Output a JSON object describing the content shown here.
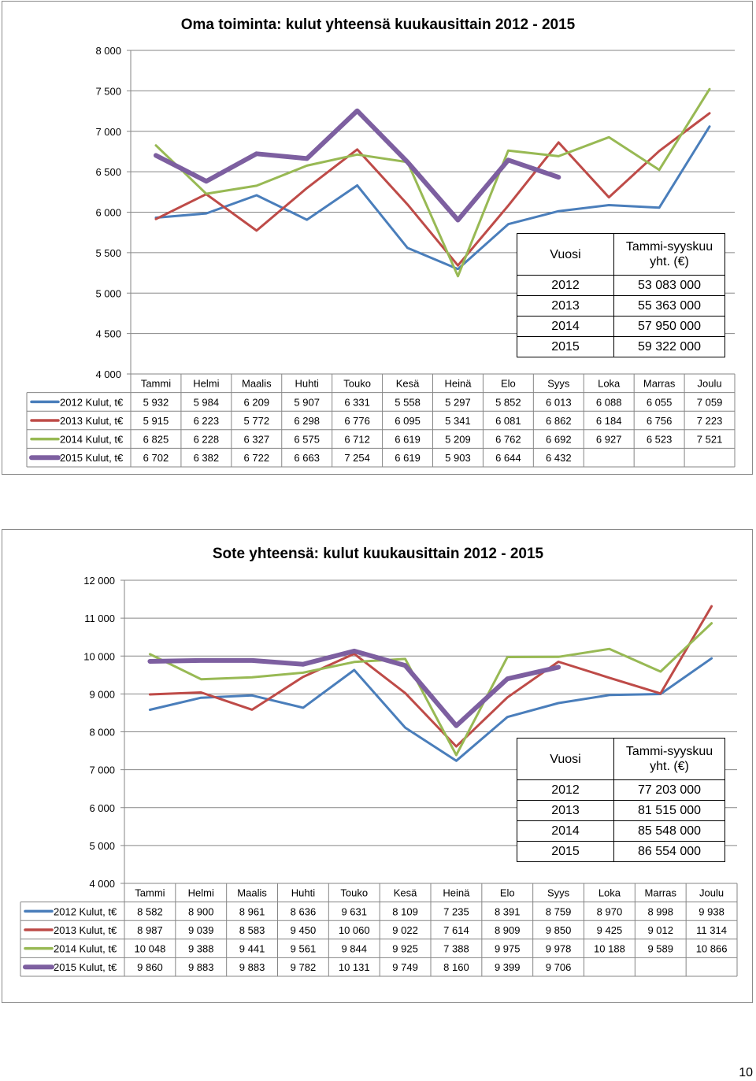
{
  "charts": [
    {
      "title": "Oma toiminta: kulut yhteensä kuukausittain 2012 - 2015",
      "summary": {
        "header_year": "Vuosi",
        "header_value": "Tammi-syyskuu yht. (€)",
        "rows": [
          {
            "year": "2012",
            "value": "53 083 000"
          },
          {
            "year": "2013",
            "value": "55 363 000"
          },
          {
            "year": "2014",
            "value": "57 950 000"
          },
          {
            "year": "2015",
            "value": "59 322 000"
          }
        ]
      }
    },
    {
      "title": "Sote yhteensä: kulut kuukausittain 2012 - 2015",
      "summary": {
        "header_year": "Vuosi",
        "header_value": "Tammi-syyskuu yht. (€)",
        "rows": [
          {
            "year": "2012",
            "value": "77 203 000"
          },
          {
            "year": "2013",
            "value": "81 515 000"
          },
          {
            "year": "2014",
            "value": "85 548 000"
          },
          {
            "year": "2015",
            "value": "86 554 000"
          }
        ]
      }
    }
  ],
  "chart_data": [
    {
      "type": "line",
      "title": "Oma toiminta: kulut yhteensä kuukausittain 2012 - 2015",
      "categories": [
        "Tammi",
        "Helmi",
        "Maalis",
        "Huhti",
        "Touko",
        "Kesä",
        "Heinä",
        "Elo",
        "Syys",
        "Loka",
        "Marras",
        "Joulu"
      ],
      "ylim": [
        4000,
        8000
      ],
      "yticks": [
        4000,
        4500,
        5000,
        5500,
        6000,
        6500,
        7000,
        7500,
        8000
      ],
      "ytick_labels": [
        "4 000",
        "4 500",
        "5 000",
        "5 500",
        "6 000",
        "6 500",
        "7 000",
        "7 500",
        "8 000"
      ],
      "grid": true,
      "legend": "data-table",
      "series": [
        {
          "name": "2012 Kulut, t€",
          "color": "#4a7ebb",
          "values": [
            5932,
            5984,
            6209,
            5907,
            6331,
            5558,
            5297,
            5852,
            6013,
            6088,
            6055,
            7059
          ],
          "labels": [
            "5 932",
            "5 984",
            "6 209",
            "5 907",
            "6 331",
            "5 558",
            "5 297",
            "5 852",
            "6 013",
            "6 088",
            "6 055",
            "7 059"
          ]
        },
        {
          "name": "2013 Kulut, t€",
          "color": "#be4b48",
          "values": [
            5915,
            6223,
            5772,
            6298,
            6776,
            6095,
            5341,
            6081,
            6862,
            6184,
            6756,
            7223
          ],
          "labels": [
            "5 915",
            "6 223",
            "5 772",
            "6 298",
            "6 776",
            "6 095",
            "5 341",
            "6 081",
            "6 862",
            "6 184",
            "6 756",
            "7 223"
          ]
        },
        {
          "name": "2014 Kulut, t€",
          "color": "#98b954",
          "values": [
            6825,
            6228,
            6327,
            6575,
            6712,
            6619,
            5209,
            6762,
            6692,
            6927,
            6523,
            7521
          ],
          "labels": [
            "6 825",
            "6 228",
            "6 327",
            "6 575",
            "6 712",
            "6 619",
            "5 209",
            "6 762",
            "6 692",
            "6 927",
            "6 523",
            "7 521"
          ]
        },
        {
          "name": "2015 Kulut, t€",
          "color": "#7d5fa0",
          "values": [
            6702,
            6382,
            6722,
            6663,
            7254,
            6619,
            5903,
            6644,
            6432,
            null,
            null,
            null
          ],
          "labels": [
            "6 702",
            "6 382",
            "6 722",
            "6 663",
            "7 254",
            "6 619",
            "5 903",
            "6 644",
            "6 432",
            "",
            "",
            ""
          ]
        }
      ]
    },
    {
      "type": "line",
      "title": "Sote yhteensä: kulut kuukausittain 2012 - 2015",
      "categories": [
        "Tammi",
        "Helmi",
        "Maalis",
        "Huhti",
        "Touko",
        "Kesä",
        "Heinä",
        "Elo",
        "Syys",
        "Loka",
        "Marras",
        "Joulu"
      ],
      "ylim": [
        4000,
        12000
      ],
      "yticks": [
        4000,
        5000,
        6000,
        7000,
        8000,
        9000,
        10000,
        11000,
        12000
      ],
      "ytick_labels": [
        "4 000",
        "5 000",
        "6 000",
        "7 000",
        "8 000",
        "9 000",
        "10 000",
        "11 000",
        "12 000"
      ],
      "grid": true,
      "legend": "data-table",
      "series": [
        {
          "name": "2012 Kulut, t€",
          "color": "#4a7ebb",
          "values": [
            8582,
            8900,
            8961,
            8636,
            9631,
            8109,
            7235,
            8391,
            8759,
            8970,
            8998,
            9938
          ],
          "labels": [
            "8 582",
            "8 900",
            "8 961",
            "8 636",
            "9 631",
            "8 109",
            "7 235",
            "8 391",
            "8 759",
            "8 970",
            "8 998",
            "9 938"
          ]
        },
        {
          "name": "2013 Kulut, t€",
          "color": "#be4b48",
          "values": [
            8987,
            9039,
            8583,
            9450,
            10060,
            9022,
            7614,
            8909,
            9850,
            9425,
            9012,
            11314
          ],
          "labels": [
            "8 987",
            "9 039",
            "8 583",
            "9 450",
            "10 060",
            "9 022",
            "7 614",
            "8 909",
            "9 850",
            "9 425",
            "9 012",
            "11 314"
          ]
        },
        {
          "name": "2014 Kulut, t€",
          "color": "#98b954",
          "values": [
            10048,
            9388,
            9441,
            9561,
            9844,
            9925,
            7388,
            9975,
            9978,
            10188,
            9589,
            10866
          ],
          "labels": [
            "10 048",
            "9 388",
            "9 441",
            "9 561",
            "9 844",
            "9 925",
            "7 388",
            "9 975",
            "9 978",
            "10 188",
            "9 589",
            "10 866"
          ]
        },
        {
          "name": "2015 Kulut, t€",
          "color": "#7d5fa0",
          "values": [
            9860,
            9883,
            9883,
            9782,
            10131,
            9749,
            8160,
            9399,
            9706,
            null,
            null,
            null
          ],
          "labels": [
            "9 860",
            "9 883",
            "9 883",
            "9 782",
            "10 131",
            "9 749",
            "8 160",
            "9 399",
            "9 706",
            "",
            "",
            ""
          ]
        }
      ]
    }
  ],
  "page_number": "10"
}
